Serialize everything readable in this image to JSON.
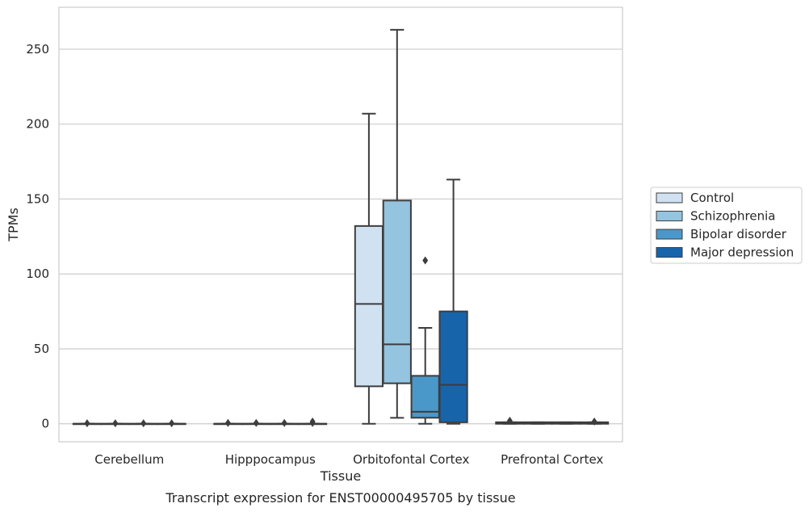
{
  "chart_data": {
    "type": "box",
    "title": "",
    "caption": "Transcript expression for ENST00000495705 by tissue",
    "xlabel": "Tissue",
    "ylabel": "TPMs",
    "ylim": [
      -12,
      278
    ],
    "yticks": [
      0,
      50,
      100,
      150,
      200,
      250
    ],
    "grid": "horizontal",
    "legend_position": "right",
    "categories": [
      "Cerebellum",
      "Hipppocampus",
      "Orbitofontal Cortex",
      "Prefrontal Cortex"
    ],
    "series": [
      {
        "name": "Control",
        "color": "#d0e1f2",
        "boxes": [
          {
            "whisker_low": 0,
            "q1": 0,
            "median": 0,
            "q3": 0,
            "whisker_high": 0,
            "outliers": [
              0.3
            ]
          },
          {
            "whisker_low": 0,
            "q1": 0,
            "median": 0,
            "q3": 0,
            "whisker_high": 0,
            "outliers": [
              0.5
            ]
          },
          {
            "whisker_low": 0,
            "q1": 25,
            "median": 80,
            "q3": 132,
            "whisker_high": 207,
            "outliers": []
          },
          {
            "whisker_low": 0,
            "q1": 0,
            "median": 0.5,
            "q3": 1,
            "whisker_high": 1,
            "outliers": [
              2
            ]
          }
        ]
      },
      {
        "name": "Schizophrenia",
        "color": "#94c4df",
        "boxes": [
          {
            "whisker_low": 0,
            "q1": 0,
            "median": 0,
            "q3": 0,
            "whisker_high": 0,
            "outliers": [
              0.3
            ]
          },
          {
            "whisker_low": 0,
            "q1": 0,
            "median": 0,
            "q3": 0,
            "whisker_high": 0,
            "outliers": [
              0.5
            ]
          },
          {
            "whisker_low": 4,
            "q1": 27,
            "median": 53,
            "q3": 149,
            "whisker_high": 263,
            "outliers": []
          },
          {
            "whisker_low": 0,
            "q1": 0,
            "median": 0.5,
            "q3": 1,
            "whisker_high": 1,
            "outliers": []
          }
        ]
      },
      {
        "name": "Bipolar disorder",
        "color": "#4a98c9",
        "boxes": [
          {
            "whisker_low": 0,
            "q1": 0,
            "median": 0,
            "q3": 0,
            "whisker_high": 0,
            "outliers": [
              0.3
            ]
          },
          {
            "whisker_low": 0,
            "q1": 0,
            "median": 0,
            "q3": 0,
            "whisker_high": 0,
            "outliers": [
              0.5
            ]
          },
          {
            "whisker_low": 0,
            "q1": 4,
            "median": 8,
            "q3": 32,
            "whisker_high": 64,
            "outliers": [
              109
            ]
          },
          {
            "whisker_low": 0,
            "q1": 0,
            "median": 0.5,
            "q3": 1,
            "whisker_high": 1,
            "outliers": []
          }
        ]
      },
      {
        "name": "Major depression",
        "color": "#1764ab",
        "boxes": [
          {
            "whisker_low": 0,
            "q1": 0,
            "median": 0,
            "q3": 0,
            "whisker_high": 0,
            "outliers": [
              0.3
            ]
          },
          {
            "whisker_low": 0,
            "q1": 0,
            "median": 0,
            "q3": 0,
            "whisker_high": 0,
            "outliers": [
              0.5,
              1.5
            ]
          },
          {
            "whisker_low": 0,
            "q1": 1,
            "median": 26,
            "q3": 75,
            "whisker_high": 163,
            "outliers": []
          },
          {
            "whisker_low": 0,
            "q1": 0,
            "median": 0.5,
            "q3": 1,
            "whisker_high": 1,
            "outliers": [
              1.5
            ]
          }
        ]
      }
    ]
  }
}
